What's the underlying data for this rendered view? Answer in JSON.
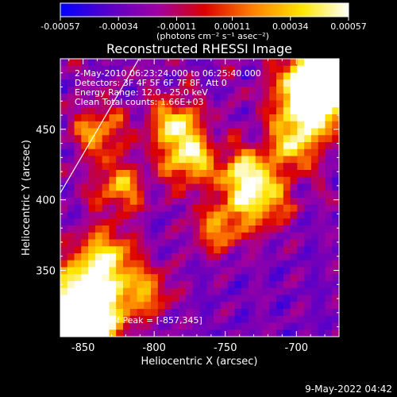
{
  "chart_data": {
    "type": "heatmap",
    "title": "Reconstructed RHESSI Image",
    "xlabel": "Heliocentric X (arcsec)",
    "ylabel": "Heliocentric Y (arcsec)",
    "xlim": [
      -866,
      -670
    ],
    "ylim": [
      303,
      500
    ],
    "x_ticks": [
      "-850",
      "-800",
      "-750",
      "-700"
    ],
    "x_tick_values": [
      -850,
      -800,
      -750,
      -700
    ],
    "y_ticks": [
      "350",
      "400",
      "450"
    ],
    "y_tick_values": [
      350,
      400,
      450
    ],
    "colorbar": {
      "min": -0.00057,
      "max": 0.00057,
      "ticks": [
        "-0.00057",
        "-0.00034",
        "-0.00011",
        "0.00011",
        "0.00034",
        "0.00057"
      ],
      "tick_values": [
        -0.00057,
        -0.00034,
        -0.00011,
        0.00011,
        0.00034,
        0.00057
      ],
      "units": "(photons cm⁻² s⁻¹ asec⁻²)",
      "colors": [
        "#0000ff",
        "#5a00c8",
        "#a000a0",
        "#dc0000",
        "#ff8200",
        "#ffe600",
        "#ffffff"
      ]
    },
    "annotations": [
      " 2-May-2010 06:23:24.000 to 06:25:40.000",
      "Detectors: 3F 4F 5F 6F 7F 8F, Att 0",
      "Energy Range: 12.0 - 25.0 keV",
      "Clean    Total counts: 1.66E+03"
    ],
    "peak_label": "Position of Peak = [-857,345]",
    "peak": [
      -857,
      345
    ]
  },
  "footer": "9-May-2022 04:42"
}
